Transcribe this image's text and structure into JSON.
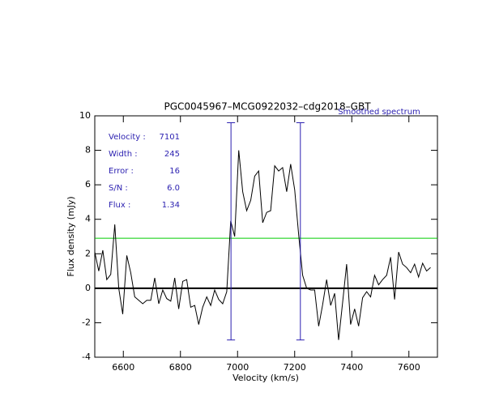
{
  "chart_data": {
    "type": "line",
    "title": "PGC0045967–MCG0922032–cdg2018–GBT",
    "subtitle": "Smoothed spectrum",
    "x_label": "Velocity (km/s)",
    "y_label": "Flux density (mJy)",
    "xlim": [
      6500,
      7700
    ],
    "ylim": [
      -4,
      10
    ],
    "xticks": [
      6600,
      6800,
      7000,
      7200,
      7400,
      7600
    ],
    "yticks": [
      -4,
      -2,
      0,
      2,
      4,
      6,
      8,
      10
    ],
    "x": [
      6500,
      6514,
      6528,
      6542,
      6556,
      6570,
      6584,
      6598,
      6612,
      6626,
      6640,
      6654,
      6668,
      6682,
      6696,
      6710,
      6724,
      6738,
      6752,
      6766,
      6780,
      6794,
      6808,
      6822,
      6836,
      6850,
      6864,
      6878,
      6892,
      6906,
      6920,
      6934,
      6948,
      6962,
      6976,
      6990,
      7004,
      7018,
      7032,
      7046,
      7060,
      7074,
      7088,
      7102,
      7116,
      7130,
      7144,
      7158,
      7172,
      7186,
      7200,
      7214,
      7228,
      7242,
      7256,
      7270,
      7284,
      7298,
      7312,
      7326,
      7340,
      7354,
      7368,
      7382,
      7396,
      7410,
      7424,
      7438,
      7452,
      7466,
      7480,
      7494,
      7508,
      7522,
      7536,
      7550,
      7564,
      7578,
      7592,
      7606,
      7620,
      7634,
      7648,
      7662,
      7676
    ],
    "series": [
      {
        "name": "Smoothed spectrum",
        "color": "#000000",
        "values": [
          2.1,
          1.0,
          2.2,
          0.5,
          0.8,
          3.7,
          0.0,
          -1.5,
          1.9,
          0.9,
          -0.5,
          -0.7,
          -0.9,
          -0.7,
          -0.7,
          0.6,
          -0.9,
          -0.1,
          -0.6,
          -0.75,
          0.6,
          -1.2,
          0.4,
          0.5,
          -1.1,
          -1.0,
          -2.1,
          -1.1,
          -0.5,
          -1.0,
          -0.1,
          -0.65,
          -0.9,
          -0.2,
          3.9,
          3.0,
          8.0,
          5.6,
          4.5,
          5.1,
          6.5,
          6.8,
          3.8,
          4.4,
          4.5,
          7.1,
          6.8,
          7.0,
          5.6,
          7.2,
          5.7,
          3.1,
          0.75,
          0.0,
          -0.1,
          -0.1,
          -2.2,
          -0.95,
          0.5,
          -1.0,
          -0.3,
          -3.0,
          -0.8,
          1.4,
          -2.1,
          -1.2,
          -2.2,
          -0.55,
          -0.2,
          -0.5,
          0.75,
          0.2,
          0.5,
          0.75,
          1.8,
          -0.65,
          2.1,
          1.4,
          1.2,
          0.9,
          1.4,
          0.65,
          1.45,
          1.0,
          1.2
        ]
      }
    ],
    "reference_lines": [
      {
        "y": 0,
        "color": "#000000"
      },
      {
        "y": 2.9,
        "color": "#00cc00"
      }
    ],
    "vlines": [
      6977,
      7220
    ],
    "vline_range": [
      -3,
      9.6
    ],
    "vline_color": "#2a1fb0",
    "annotations": [
      {
        "label": "Velocity :",
        "value": "7101"
      },
      {
        "label": "Width :",
        "value": "245"
      },
      {
        "label": "Error :",
        "value": "16"
      },
      {
        "label": "S/N :",
        "value": "6.0"
      },
      {
        "label": "Flux :",
        "value": "1.34"
      }
    ],
    "annotation_color": "#2a1fb0"
  }
}
